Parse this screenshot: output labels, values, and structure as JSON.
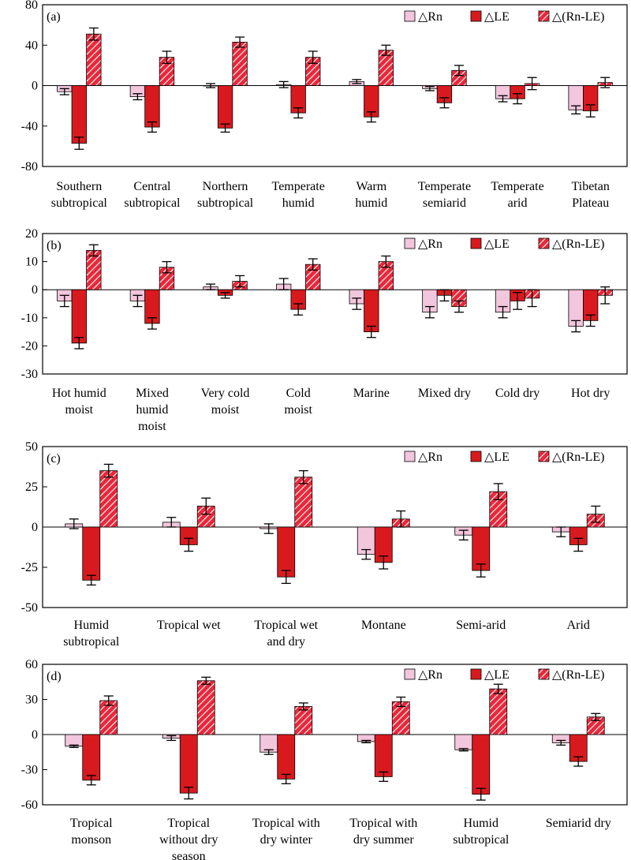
{
  "figure": {
    "series_styles": [
      {
        "fill": "#f2c6dc",
        "stroke": "#000000",
        "pattern": "solid"
      },
      {
        "fill": "#d81a1e",
        "stroke": "#000000",
        "pattern": "solid"
      },
      {
        "fill": "#e8283a",
        "stroke": "#000000",
        "pattern": "hatch-white"
      }
    ]
  },
  "chart_data": [
    {
      "type": "bar",
      "panel_label": "(a)",
      "legend_position": "top-right",
      "grid": false,
      "ylim": [
        -80,
        80
      ],
      "yticks": [
        -80,
        -40,
        0,
        40,
        80
      ],
      "categories": [
        [
          "Southern",
          "subtropical"
        ],
        [
          "Central",
          "subtropical"
        ],
        [
          "Northern",
          "subtropical"
        ],
        [
          "Temperate",
          "humid"
        ],
        [
          "Warm",
          "humid"
        ],
        [
          "Temperate",
          "semiarid"
        ],
        [
          "Temperate",
          "arid"
        ],
        [
          "Tibetan",
          "Plateau"
        ]
      ],
      "series": [
        {
          "name": "△Rn",
          "values": [
            -6,
            -11,
            0,
            1,
            4,
            -3,
            -13,
            -24
          ],
          "errors": [
            3,
            3,
            2,
            3,
            2,
            2,
            3,
            4
          ]
        },
        {
          "name": "△LE",
          "values": [
            -57,
            -41,
            -42,
            -27,
            -31,
            -17,
            -13,
            -25
          ],
          "errors": [
            6,
            5,
            4,
            5,
            5,
            5,
            5,
            6
          ]
        },
        {
          "name": "△(Rn-LE)",
          "values": [
            51,
            28,
            43,
            28,
            35,
            15,
            2,
            3
          ],
          "errors": [
            6,
            6,
            5,
            6,
            5,
            5,
            6,
            5
          ]
        }
      ]
    },
    {
      "type": "bar",
      "panel_label": "(b)",
      "legend_position": "top-right",
      "grid": false,
      "ylim": [
        -30,
        20
      ],
      "yticks": [
        -30,
        -20,
        -10,
        0,
        10,
        20
      ],
      "categories": [
        [
          "Hot humid",
          "moist"
        ],
        [
          "Mixed",
          "humid",
          "moist"
        ],
        [
          "Very cold",
          "moist"
        ],
        [
          "Cold",
          "moist"
        ],
        [
          "Marine"
        ],
        [
          "Mixed dry"
        ],
        [
          "Cold dry"
        ],
        [
          "Hot dry"
        ]
      ],
      "series": [
        {
          "name": "△Rn",
          "values": [
            -4,
            -4,
            1,
            2,
            -5,
            -8,
            -8,
            -13
          ],
          "errors": [
            2,
            2,
            1,
            2,
            2,
            2,
            2,
            2
          ]
        },
        {
          "name": "△LE",
          "values": [
            -19,
            -12,
            -2,
            -7,
            -15,
            -2,
            -4,
            -11
          ],
          "errors": [
            2,
            2,
            1,
            2,
            2,
            2,
            3,
            2
          ]
        },
        {
          "name": "△(Rn-LE)",
          "values": [
            14,
            8,
            3,
            9,
            10,
            -6,
            -3,
            -2
          ],
          "errors": [
            2,
            2,
            2,
            2,
            2,
            2,
            3,
            3
          ]
        }
      ]
    },
    {
      "type": "bar",
      "panel_label": "(c)",
      "legend_position": "top-right",
      "grid": false,
      "ylim": [
        -50,
        50
      ],
      "yticks": [
        -50,
        -25,
        0,
        25,
        50
      ],
      "categories": [
        [
          "Humid",
          "subtropical"
        ],
        [
          "Tropical wet"
        ],
        [
          "Tropical wet",
          "and dry"
        ],
        [
          "Montane"
        ],
        [
          "Semi-arid"
        ],
        [
          "Arid"
        ]
      ],
      "series": [
        {
          "name": "△Rn",
          "values": [
            2,
            3,
            -1,
            -17,
            -5,
            -3
          ],
          "errors": [
            3,
            3,
            3,
            3,
            3,
            3
          ]
        },
        {
          "name": "△LE",
          "values": [
            -33,
            -11,
            -31,
            -22,
            -27,
            -11
          ],
          "errors": [
            3,
            4,
            4,
            4,
            4,
            4
          ]
        },
        {
          "name": "△(Rn-LE)",
          "values": [
            35,
            13,
            31,
            5,
            22,
            8
          ],
          "errors": [
            4,
            5,
            4,
            5,
            5,
            5
          ]
        }
      ]
    },
    {
      "type": "bar",
      "panel_label": "(d)",
      "legend_position": "top-right",
      "grid": false,
      "ylim": [
        -60,
        60
      ],
      "yticks": [
        -60,
        -30,
        0,
        30,
        60
      ],
      "categories": [
        [
          "Tropical",
          "monson"
        ],
        [
          "Tropical",
          "without dry",
          "season"
        ],
        [
          "Tropical with",
          "dry winter"
        ],
        [
          "Tropical with",
          "dry summer"
        ],
        [
          "Humid",
          "subtropical"
        ],
        [
          "Semiarid dry"
        ]
      ],
      "series": [
        {
          "name": "△Rn",
          "values": [
            -10,
            -3,
            -15,
            -6,
            -13,
            -7
          ],
          "errors": [
            1,
            2,
            2,
            1,
            1,
            2
          ]
        },
        {
          "name": "△LE",
          "values": [
            -39,
            -50,
            -38,
            -36,
            -51,
            -23
          ],
          "errors": [
            4,
            5,
            4,
            4,
            5,
            4
          ]
        },
        {
          "name": "△(Rn-LE)",
          "values": [
            29,
            46,
            24,
            28,
            39,
            15
          ],
          "errors": [
            4,
            3,
            3,
            4,
            4,
            3
          ]
        }
      ]
    }
  ]
}
